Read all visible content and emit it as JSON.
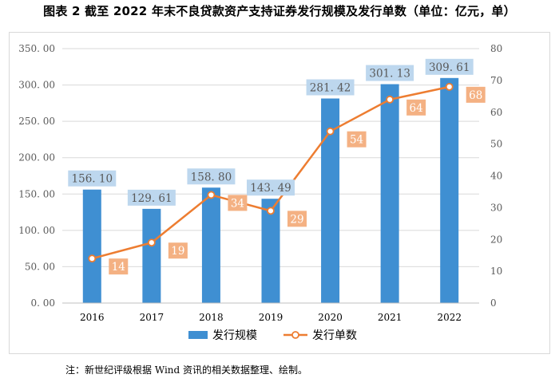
{
  "figure": {
    "title": "图表 2    截至 2022 年末不良贷款资产支持证券发行规模及发行单数（单位：亿元，单）",
    "note": "注：新世纪评级根据 Wind 资讯的相关数据整理、绘制。"
  },
  "chart_data": {
    "type": "bar+line",
    "title": "截至 2022 年末不良贷款资产支持证券发行规模及发行单数（单位：亿元，单）",
    "categories": [
      "2016",
      "2017",
      "2018",
      "2019",
      "2020",
      "2021",
      "2022"
    ],
    "series": [
      {
        "name": "发行规模",
        "type": "bar",
        "axis": "left",
        "values": [
          156.1,
          129.61,
          158.8,
          143.49,
          281.42,
          301.13,
          309.61
        ],
        "labels": [
          "156. 10",
          "129. 61",
          "158. 80",
          "143. 49",
          "281. 42",
          "301. 13",
          "309. 61"
        ]
      },
      {
        "name": "发行单数",
        "type": "line",
        "axis": "right",
        "values": [
          14,
          19,
          34,
          29,
          54,
          64,
          68
        ],
        "labels": [
          "14",
          "19",
          "34",
          "29",
          "54",
          "64",
          "68"
        ]
      }
    ],
    "y_left": {
      "range": [
        0,
        350
      ],
      "ticks": [
        0,
        50,
        100,
        150,
        200,
        250,
        300,
        350
      ],
      "tick_labels": [
        "0. 00",
        "50. 00",
        "100. 00",
        "150. 00",
        "200. 00",
        "250. 00",
        "300. 00",
        "350. 00"
      ]
    },
    "y_right": {
      "range": [
        0,
        80
      ],
      "ticks": [
        0,
        10,
        20,
        30,
        40,
        50,
        60,
        70,
        80
      ],
      "tick_labels": [
        "0",
        "10",
        "20",
        "30",
        "40",
        "50",
        "60",
        "70",
        "80"
      ]
    },
    "grid": true,
    "legend": {
      "position": "bottom",
      "entries": [
        "发行规模",
        "发行单数"
      ]
    },
    "colors": {
      "bar": "#3f8fd2",
      "line": "#ed7d31",
      "bar_label_bg": "#bdd7ee",
      "line_label_bg": "#f4b183",
      "grid": "#d9d9d9",
      "axis": "#bfbfbf"
    }
  }
}
